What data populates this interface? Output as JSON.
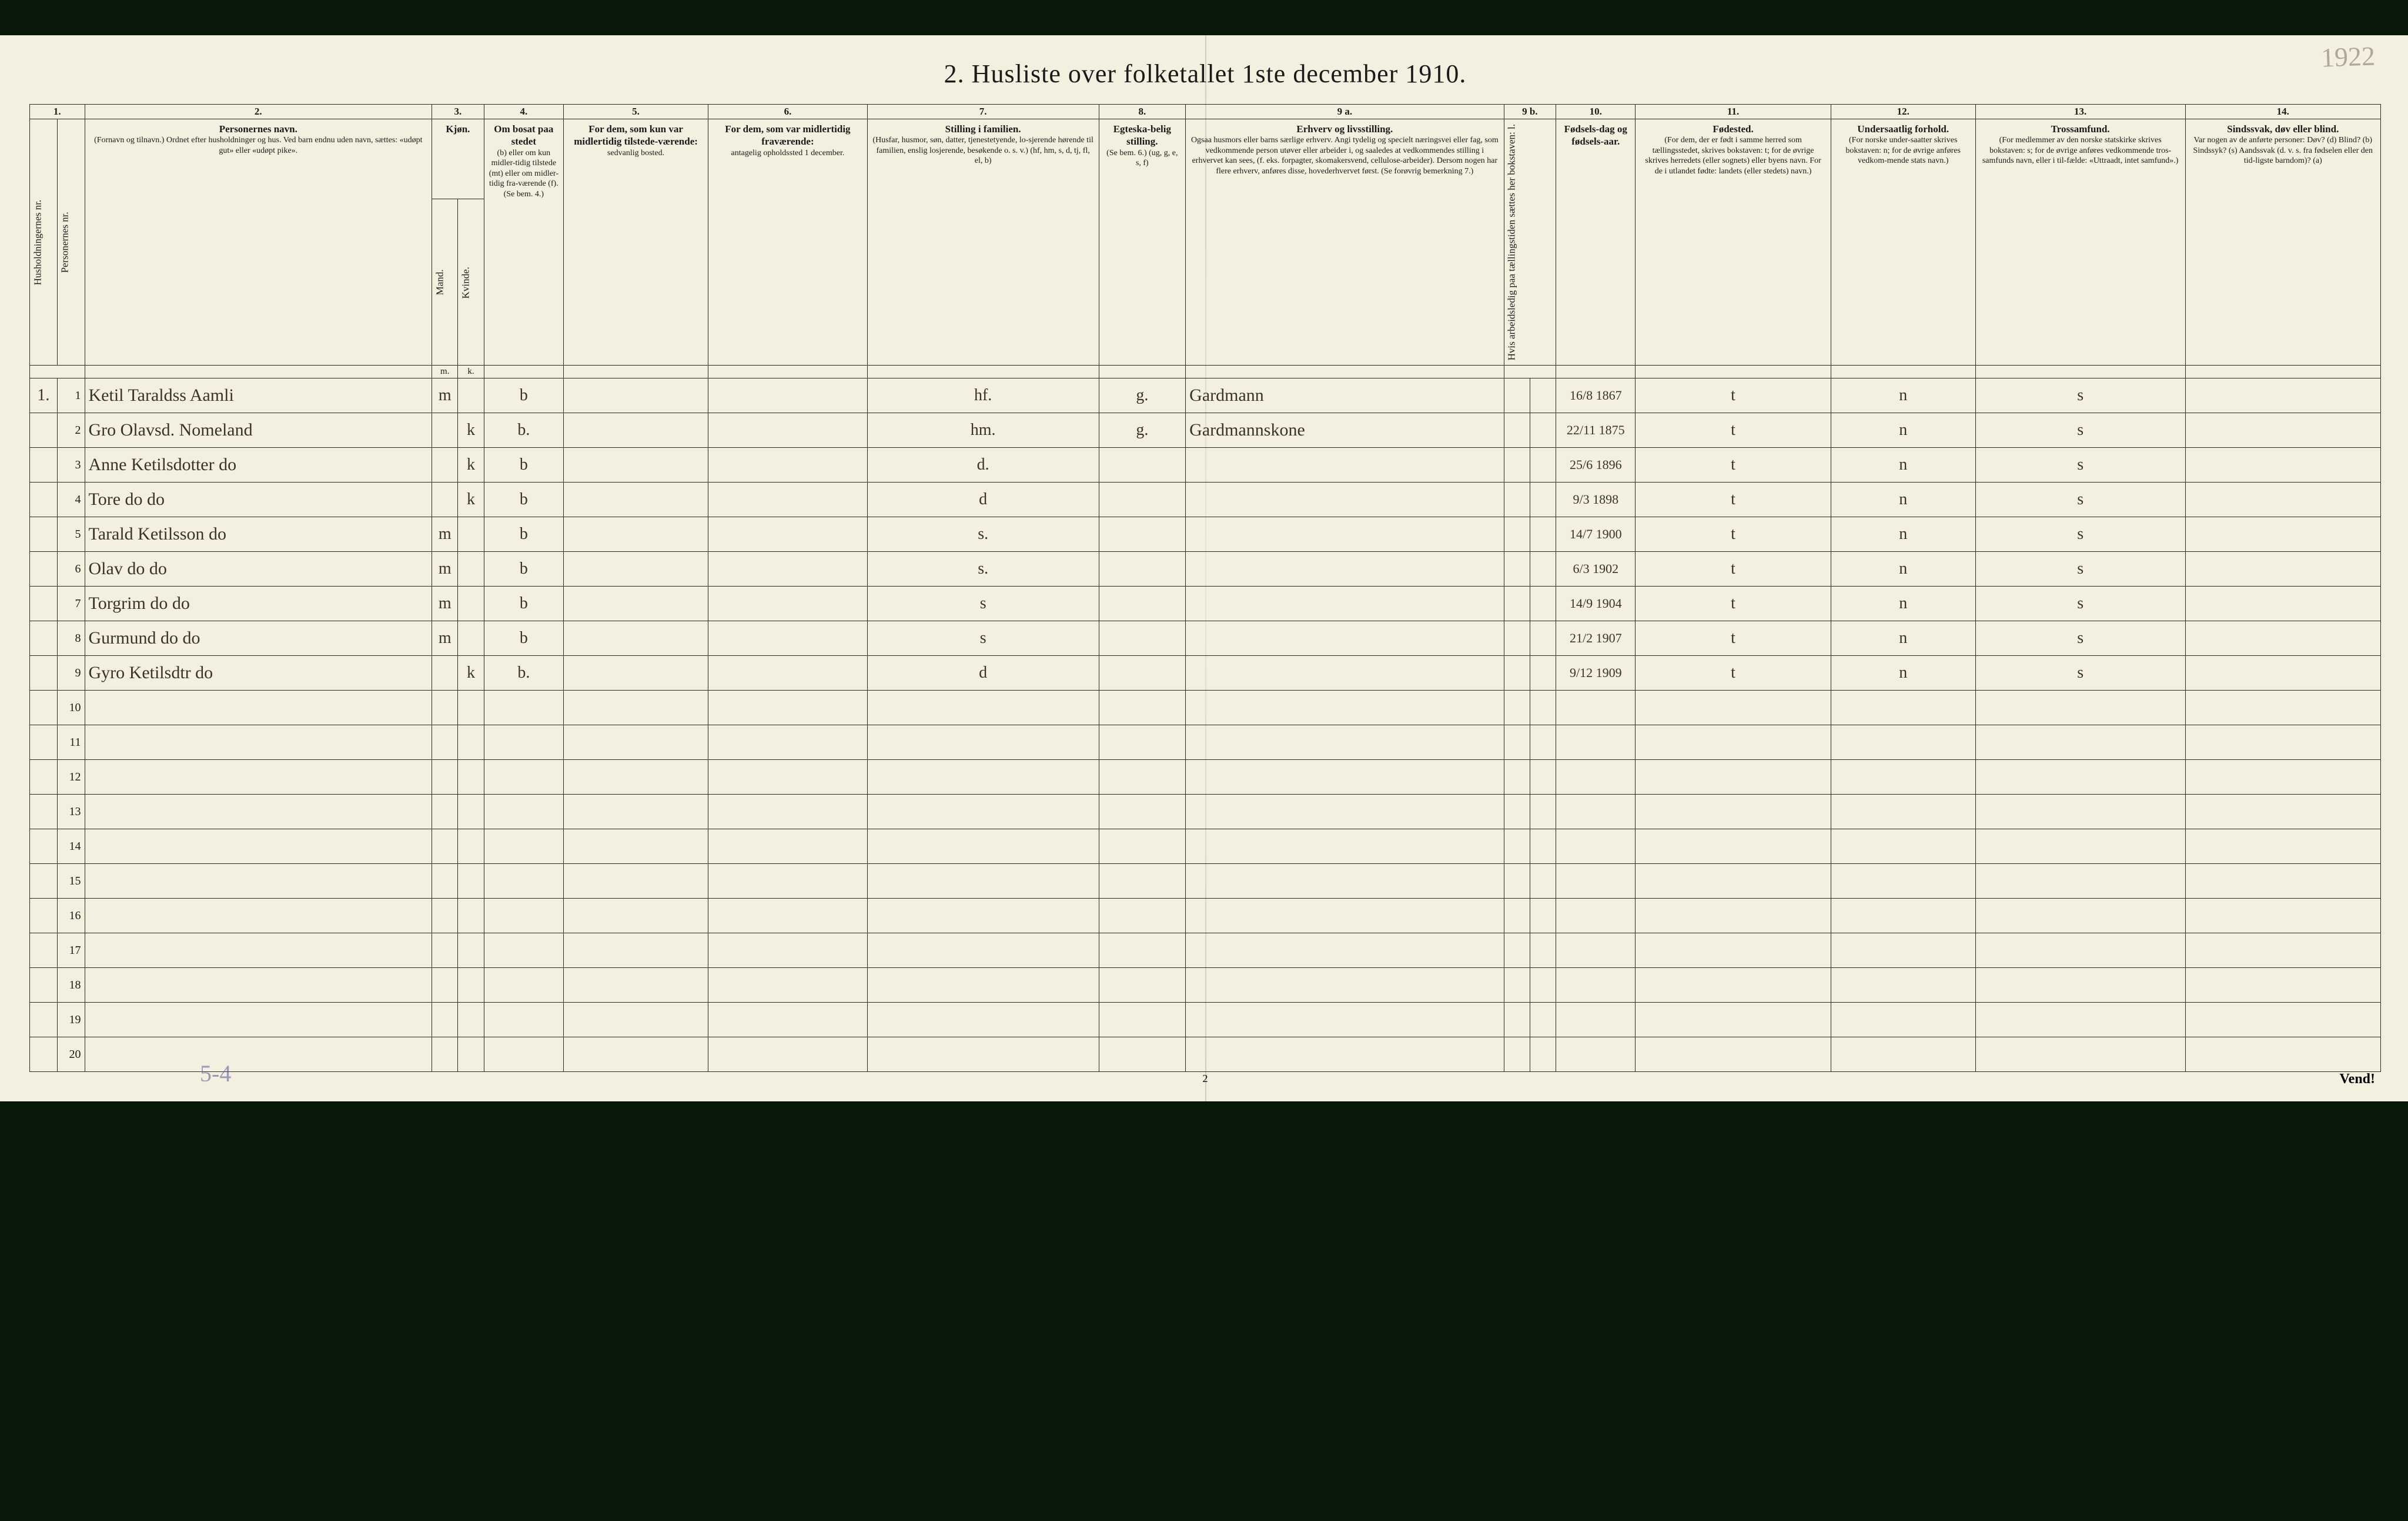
{
  "page": {
    "title": "2.  Husliste over folketallet 1ste december 1910.",
    "pencil_year": "1922",
    "foot_left": "5-4",
    "foot_center": "2",
    "foot_right": "Vend!",
    "background_color": "#f4f0e0",
    "border_color": "#2a2a2a",
    "handwriting_color": "#3a3326"
  },
  "header": {
    "nums": [
      "1.",
      "2.",
      "3.",
      "4.",
      "5.",
      "6.",
      "7.",
      "8.",
      "9 a.",
      "9 b.",
      "10.",
      "11.",
      "12.",
      "13.",
      "14."
    ],
    "c1a": "Husholdningernes nr.",
    "c1b": "Personernes nr.",
    "c2": {
      "main": "Personernes navn.",
      "sub": "(Fornavn og tilnavn.)\nOrdnet efter husholdninger og hus.\nVed barn endnu uden navn, sættes: «udøpt gut» eller «udøpt pike»."
    },
    "c3": {
      "main": "Kjøn.",
      "m": "Mand.",
      "k": "Kvinde.",
      "mk_m": "m.",
      "mk_k": "k."
    },
    "c4": {
      "main": "Om bosat paa stedet",
      "sub": "(b) eller om kun midler-tidig tilstede (mt) eller om midler-tidig fra-værende (f). (Se bem. 4.)"
    },
    "c5": {
      "main": "For dem, som kun var midlertidig tilstede-værende:",
      "sub": "sedvanlig bosted."
    },
    "c6": {
      "main": "For dem, som var midlertidig fraværende:",
      "sub": "antagelig opholdssted 1 december."
    },
    "c7": {
      "main": "Stilling i familien.",
      "sub": "(Husfar, husmor, søn, datter, tjenestetyende, lo-sjerende hørende til familien, enslig losjerende, besøkende o. s. v.)\n(hf, hm, s, d, tj, fl, el, b)"
    },
    "c8": {
      "main": "Egteska-belig stilling.",
      "sub": "(Se bem. 6.)\n(ug, g, e, s, f)"
    },
    "c9a": {
      "main": "Erhverv og livsstilling.",
      "sub": "Ogsaa husmors eller barns særlige erhverv. Angi tydelig og specielt næringsvei eller fag, som vedkommende person utøver eller arbeider i, og saaledes at vedkommendes stilling i erhvervet kan sees, (f. eks. forpagter, skomakersvend, cellulose-arbeider). Dersom nogen har flere erhverv, anføres disse, hovederhvervet først.\n(Se forøvrig bemerkning 7.)"
    },
    "c9b": "Hvis arbeidsledig paa tællingstiden sættes her bokstaven: l.",
    "c10": {
      "main": "Fødsels-dag og fødsels-aar."
    },
    "c11": {
      "main": "Fødested.",
      "sub": "(For dem, der er født i samme herred som tællingsstedet, skrives bokstaven: t; for de øvrige skrives herredets (eller sognets) eller byens navn. For de i utlandet fødte: landets (eller stedets) navn.)"
    },
    "c12": {
      "main": "Undersaatlig forhold.",
      "sub": "(For norske under-saatter skrives bokstaven: n; for de øvrige anføres vedkom-mende stats navn.)"
    },
    "c13": {
      "main": "Trossamfund.",
      "sub": "(For medlemmer av den norske statskirke skrives bokstaven: s; for de øvrige anføres vedkommende tros-samfunds navn, eller i til-fælde: «Uttraadt, intet samfund».)"
    },
    "c14": {
      "main": "Sindssvak, døv eller blind.",
      "sub": "Var nogen av de anførte personer:\nDøv?  (d)\nBlind?  (b)\nSindssyk?  (s)\nAandssvak (d. v. s. fra fødselen eller den tid-ligste barndom)?  (a)"
    }
  },
  "rows": [
    {
      "hn": "1.",
      "pn": "1",
      "name": "Ketil Taraldss Aamli",
      "sex": "m",
      "bosat": "b",
      "fam": "hf.",
      "eg": "g.",
      "erhverv": "Gardmann",
      "dob": "16/8 1867",
      "fsted": "t",
      "nat": "n",
      "tro": "s"
    },
    {
      "hn": "",
      "pn": "2",
      "name": "Gro Olavsd. Nomeland",
      "sex": "k",
      "bosat": "b.",
      "fam": "hm.",
      "eg": "g.",
      "erhverv": "Gardmannskone",
      "dob": "22/11 1875",
      "fsted": "t",
      "nat": "n",
      "tro": "s"
    },
    {
      "hn": "",
      "pn": "3",
      "name": "Anne Ketilsdotter  do",
      "sex": "k",
      "bosat": "b",
      "fam": "d.",
      "eg": "",
      "erhverv": "",
      "dob": "25/6 1896",
      "fsted": "t",
      "nat": "n",
      "tro": "s"
    },
    {
      "hn": "",
      "pn": "4",
      "name": "Tore        do        do",
      "sex": "k",
      "bosat": "b",
      "fam": "d",
      "eg": "",
      "erhverv": "",
      "dob": "9/3 1898",
      "fsted": "t",
      "nat": "n",
      "tro": "s"
    },
    {
      "hn": "",
      "pn": "5",
      "name": "Tarald Ketilsson   do",
      "sex": "m",
      "bosat": "b",
      "fam": "s.",
      "eg": "",
      "erhverv": "",
      "dob": "14/7 1900",
      "fsted": "t",
      "nat": "n",
      "tro": "s"
    },
    {
      "hn": "",
      "pn": "6",
      "name": "Olav     do        do",
      "sex": "m",
      "bosat": "b",
      "fam": "s.",
      "eg": "",
      "erhverv": "",
      "dob": "6/3 1902",
      "fsted": "t",
      "nat": "n",
      "tro": "s"
    },
    {
      "hn": "",
      "pn": "7",
      "name": "Torgrim  do        do",
      "sex": "m",
      "bosat": "b",
      "fam": "s",
      "eg": "",
      "erhverv": "",
      "dob": "14/9 1904",
      "fsted": "t",
      "nat": "n",
      "tro": "s"
    },
    {
      "hn": "",
      "pn": "8",
      "name": "Gurmund  do        do",
      "sex": "m",
      "bosat": "b",
      "fam": "s",
      "eg": "",
      "erhverv": "",
      "dob": "21/2 1907",
      "fsted": "t",
      "nat": "n",
      "tro": "s"
    },
    {
      "hn": "",
      "pn": "9",
      "name": "Gyro Ketilsdtr    do",
      "sex": "k",
      "bosat": "b.",
      "fam": "d",
      "eg": "",
      "erhverv": "",
      "dob": "9/12 1909",
      "fsted": "t",
      "nat": "n",
      "tro": "s"
    }
  ],
  "blank_rows": [
    "10",
    "11",
    "12",
    "13",
    "14",
    "15",
    "16",
    "17",
    "18",
    "19",
    "20"
  ]
}
